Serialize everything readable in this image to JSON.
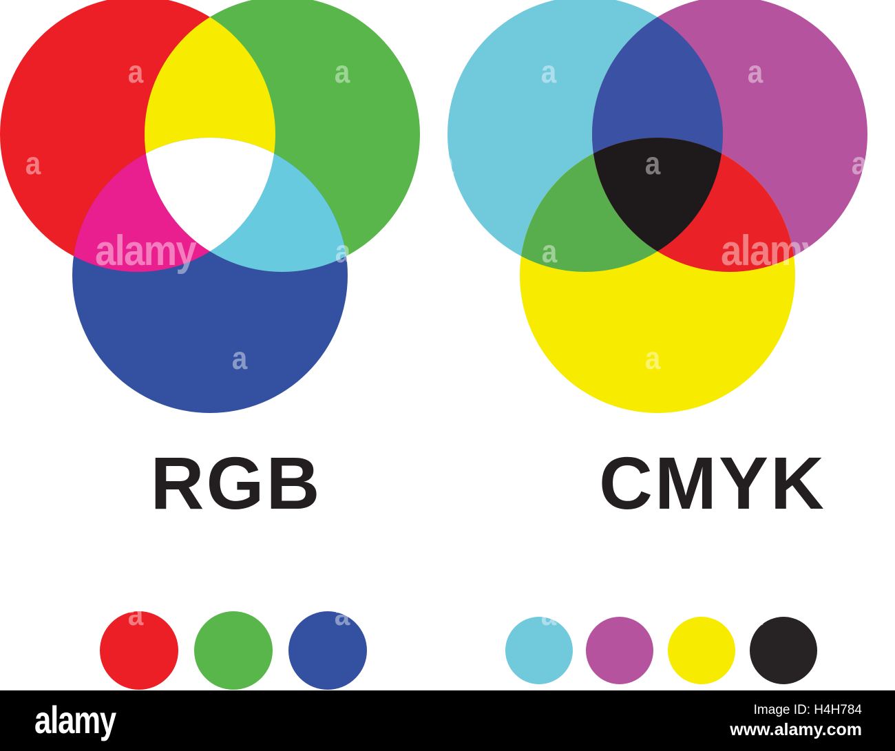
{
  "page": {
    "background": "#FFFFFF"
  },
  "diagrams": [
    {
      "label": "RGB",
      "circles": [
        {
          "name": "red",
          "color": "#EC1E26"
        },
        {
          "name": "green",
          "color": "#58B64A"
        },
        {
          "name": "blue",
          "color": "#3450A1"
        }
      ],
      "overlaps": {
        "red_green": "#F7EB00",
        "red_blue": "#EA1F8F",
        "green_blue": "#67CADF",
        "center": "#FFFFFF"
      },
      "swatches": [
        {
          "name": "red",
          "color": "#EC1E26"
        },
        {
          "name": "green",
          "color": "#58B64A"
        },
        {
          "name": "blue",
          "color": "#3450A1"
        }
      ]
    },
    {
      "label": "CMYK",
      "circles": [
        {
          "name": "cyan",
          "color": "#71C9DC"
        },
        {
          "name": "magenta",
          "color": "#B5539F"
        },
        {
          "name": "yellow",
          "color": "#F7EB00"
        }
      ],
      "overlaps": {
        "cyan_magenta": "#3B51A3",
        "cyan_yellow": "#58AE4C",
        "magenta_yellow": "#EA2127",
        "center": "#1E1A1B"
      },
      "swatches": [
        {
          "name": "cyan",
          "color": "#71C9DC"
        },
        {
          "name": "magenta",
          "color": "#B5539F"
        },
        {
          "name": "yellow",
          "color": "#F7EB00"
        },
        {
          "name": "black",
          "color": "#272224"
        }
      ]
    }
  ],
  "watermark": {
    "letter": "a",
    "word": "alamy"
  },
  "footer": {
    "logo": "alamy",
    "image_id": "Image ID: H4H784",
    "website": "www.alamy.com",
    "background": "#000000",
    "text_color": "#FFFFFF"
  }
}
